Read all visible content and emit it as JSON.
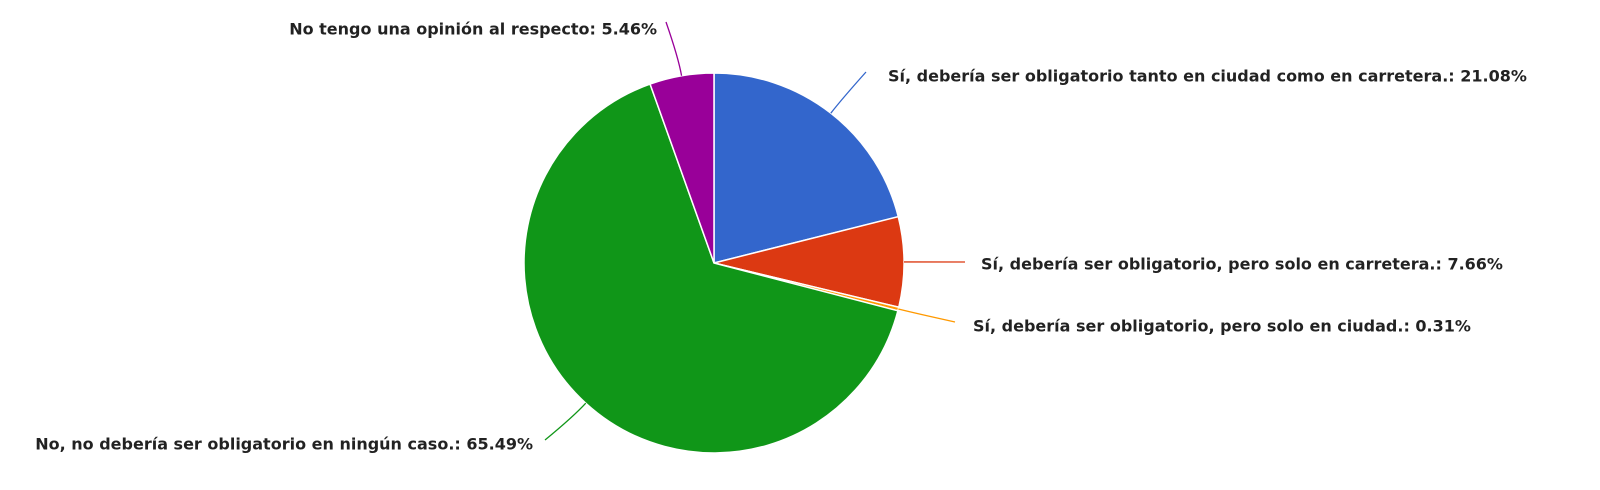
{
  "chart_data": {
    "type": "pie",
    "values": [
      21.08,
      7.66,
      0.31,
      65.49,
      5.46
    ],
    "value_labels": [
      "Sí, debería ser obligatorio tanto en ciudad como en carretera.: 21.08%",
      "Sí, debería ser obligatorio, pero solo en carretera.: 7.66%",
      "Sí, debería ser obligatorio, pero solo en ciudad.: 0.31%",
      "No, no debería ser obligatorio en ningún caso.: 65.49%",
      "No tengo una opinión al respecto: 5.46%"
    ],
    "colors": [
      "#3366cc",
      "#dc3912",
      "#ff9900",
      "#109618",
      "#990099"
    ]
  }
}
